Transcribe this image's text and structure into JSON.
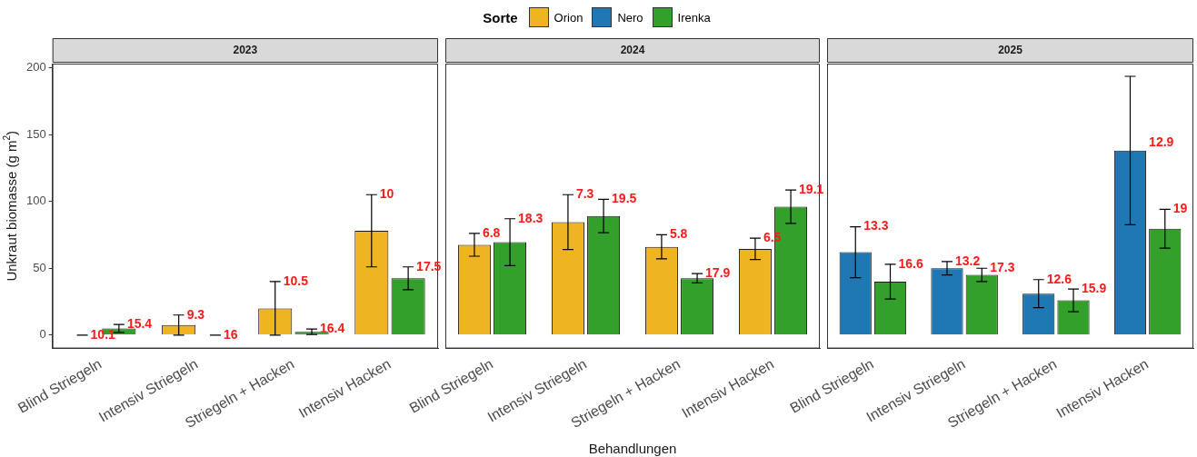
{
  "chart_data": [
    {
      "type": "bar",
      "title": "2023",
      "ylabel": "Unkraut biomasse (g m$^{2}$)",
      "legend": "top",
      "legend_title": "Sorte",
      "categories": [
        "Blind Striegeln",
        "Intensiv Striegeln",
        "Striegeln + Hacken",
        "Intensiv Hacken"
      ],
      "ylim": [
        -10,
        203
      ],
      "yticks": [
        0,
        50,
        100,
        150,
        200
      ],
      "grid": false,
      "series": [
        {
          "name": "Orion",
          "color": "#eeb422",
          "values": [
            0,
            7.5,
            20,
            78
          ],
          "errors": [
            0,
            7.5,
            20,
            27
          ]
        },
        {
          "name": "Irenka",
          "color": "#33a02c",
          "values": [
            5,
            0,
            2.5,
            42.5
          ],
          "errors": [
            3,
            0,
            2,
            8.5
          ]
        }
      ],
      "annotations": [
        {
          "text": "10.1",
          "x": "Blind Striegeln",
          "y": 0
        },
        {
          "text": "15.4",
          "x": "Blind Striegeln",
          "y": 5
        },
        {
          "text": "9.3",
          "x": "Intensiv Striegeln",
          "y": 7.5
        },
        {
          "text": "16",
          "x": "Intensiv Striegeln",
          "y": 0
        },
        {
          "text": "10.5",
          "x": "Striegeln + Hacken",
          "y": 20
        },
        {
          "text": "16.4",
          "x": "Striegeln + Hacken",
          "y": 2.5
        },
        {
          "text": "10",
          "x": "Intensiv Hacken",
          "y": 78
        },
        {
          "text": "17.5",
          "x": "Intensiv Hacken",
          "y": 42.5
        }
      ]
    },
    {
      "type": "bar",
      "title": "2024",
      "xlabel": "Behandlungen",
      "categories": [
        "Blind Striegeln",
        "Intensiv Striegeln",
        "Striegeln + Hacken",
        "Intensiv Hacken"
      ],
      "ylim": [
        -10,
        203
      ],
      "yticks": [
        0,
        50,
        100,
        150,
        200
      ],
      "grid": false,
      "tick_labels": "x",
      "series": [
        {
          "name": "Orion",
          "color": "#eeb422",
          "values": [
            67.5,
            84.5,
            66,
            64.5
          ],
          "errors": [
            8.5,
            20.5,
            9,
            8
          ]
        },
        {
          "name": "Irenka",
          "color": "#33a02c",
          "values": [
            69.5,
            89,
            42.5,
            96
          ],
          "errors": [
            17.5,
            12.5,
            3.5,
            12.5
          ]
        }
      ],
      "annotations": [
        {
          "text": "6.8",
          "x": "Blind Striegeln",
          "y": 67.5
        },
        {
          "text": "18.3",
          "x": "Blind Striegeln",
          "y": 69.5
        },
        {
          "text": "7.3",
          "x": "Intensiv Striegeln",
          "y": 84.5
        },
        {
          "text": "19.5",
          "x": "Intensiv Striegeln",
          "y": 89
        },
        {
          "text": "5.8",
          "x": "Striegeln + Hacken",
          "y": 66
        },
        {
          "text": "17.9",
          "x": "Striegeln + Hacken",
          "y": 42.5
        },
        {
          "text": "6.5",
          "x": "Intensiv Hacken",
          "y": 64.5
        },
        {
          "text": "19.1",
          "x": "Intensiv Hacken",
          "y": 96
        }
      ]
    },
    {
      "type": "bar",
      "title": "2025",
      "categories": [
        "Blind Striegeln",
        "Intensiv Striegeln",
        "Striegeln + Hacken",
        "Intensiv Hacken"
      ],
      "ylim": [
        -10,
        203
      ],
      "yticks": [
        0,
        50,
        100,
        150,
        200
      ],
      "grid": false,
      "tick_labels": "x",
      "series": [
        {
          "name": "Nero",
          "color": "#1f78b4",
          "values": [
            62,
            50,
            31,
            138
          ],
          "errors": [
            19,
            5,
            10.5,
            55.5
          ]
        },
        {
          "name": "Irenka",
          "color": "#33a02c",
          "values": [
            40,
            45,
            26,
            79.5
          ],
          "errors": [
            13,
            5,
            8.5,
            14.5
          ]
        }
      ],
      "annotations": [
        {
          "text": "13.3",
          "x": "Blind Striegeln",
          "y": 62
        },
        {
          "text": "16.6",
          "x": "Blind Striegeln",
          "y": 40
        },
        {
          "text": "13.2",
          "x": "Intensiv Striegeln",
          "y": 50
        },
        {
          "text": "17.3",
          "x": "Intensiv Striegeln",
          "y": 45
        },
        {
          "text": "12.6",
          "x": "Striegeln + Hacken",
          "y": 31
        },
        {
          "text": "15.9",
          "x": "Striegeln + Hacken",
          "y": 26
        },
        {
          "text": "12.9",
          "x": "Intensiv Hacken",
          "y": 138
        },
        {
          "text": "19",
          "x": "Intensiv Hacken",
          "y": 79.5
        }
      ]
    }
  ]
}
